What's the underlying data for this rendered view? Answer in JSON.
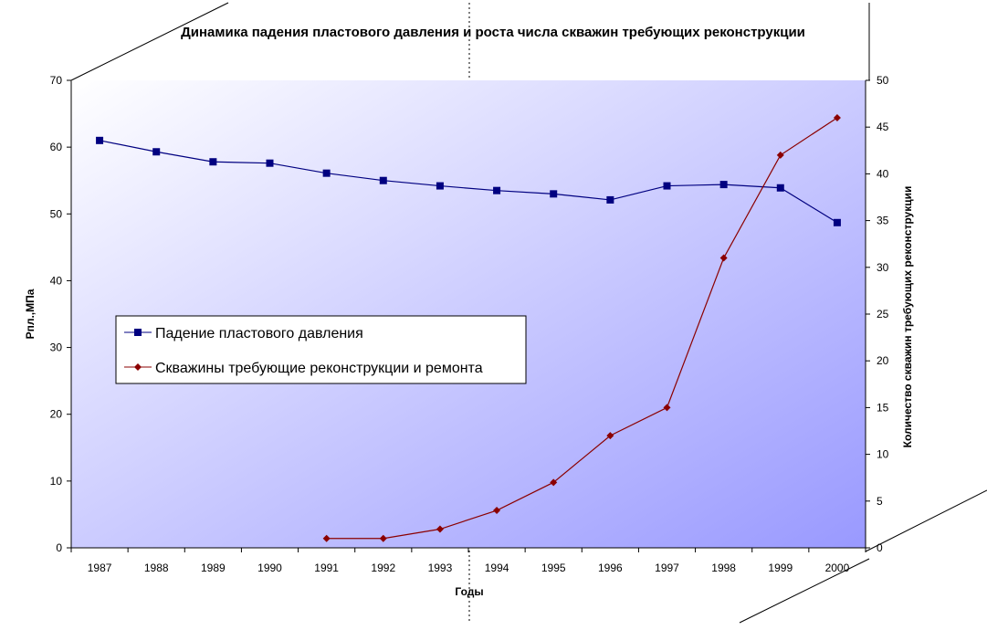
{
  "chart_data": {
    "type": "line",
    "title": "Динамика падения пластового давления и роста числа скважин  требующих реконструкции",
    "xlabel": "Годы",
    "ylabel_left": "Рпл.,МПа",
    "ylabel_right": "Количество скважин требующих реконструкции",
    "x": [
      "1987",
      "1988",
      "1989",
      "1990",
      "1991",
      "1992",
      "1993",
      "1994",
      "1995",
      "1996",
      "1997",
      "1998",
      "1999",
      "2000"
    ],
    "ylim_left": [
      0,
      70
    ],
    "yticks_left": [
      0,
      10,
      20,
      30,
      40,
      50,
      60,
      70
    ],
    "ylim_right": [
      0,
      50
    ],
    "yticks_right": [
      0,
      5,
      10,
      15,
      20,
      25,
      30,
      35,
      40,
      45,
      50
    ],
    "grid": false,
    "legend_position": "middle-left",
    "series": [
      {
        "name": "Падение пластового давления",
        "axis": "left",
        "color": "#000080",
        "marker": "square",
        "values": [
          61.0,
          59.3,
          57.8,
          57.6,
          56.1,
          55.0,
          54.2,
          53.5,
          53.0,
          52.1,
          54.2,
          54.4,
          53.9,
          48.7
        ]
      },
      {
        "name": "Скважины требующие реконструкции и ремонта",
        "axis": "right",
        "color": "#8B0000",
        "marker": "diamond",
        "values": [
          null,
          null,
          null,
          null,
          1,
          1,
          2,
          4,
          7,
          12,
          15,
          31,
          42,
          46
        ]
      }
    ],
    "background_gradient": [
      "#ffffff",
      "#9999ff"
    ]
  }
}
